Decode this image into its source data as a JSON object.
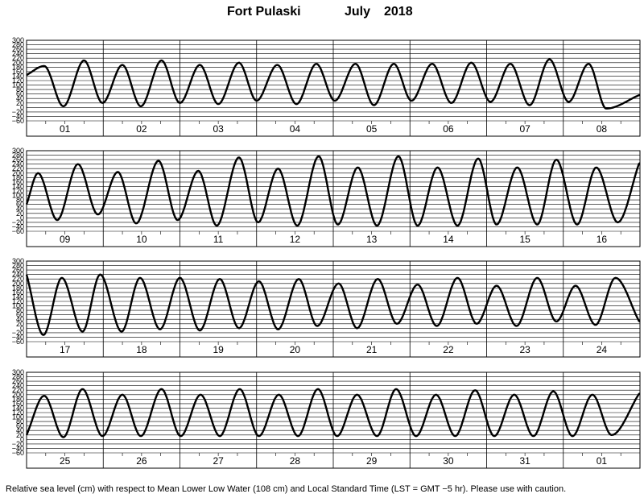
{
  "title": {
    "station": "Fort Pulaski",
    "month": "July",
    "year": "2018"
  },
  "caption": "Relative sea level (cm) with respect to Mean Lower Low Water (108 cm) and Local Standard Time (LST = GMT −5 hr). Please use with caution.",
  "chart_data": [
    {
      "type": "line",
      "xlabel": "",
      "ylabel": "",
      "ylim": [
        -60,
        300
      ],
      "yticks": [
        "300",
        "280",
        "260",
        "240",
        "220",
        "200",
        "180",
        "160",
        "140",
        "120",
        "100",
        "80",
        "60",
        "40",
        "20",
        "0",
        "−20",
        "−40",
        "−60"
      ],
      "xticks": [
        "01",
        "02",
        "03",
        "04",
        "05",
        "06",
        "07",
        "08"
      ],
      "series": [
        {
          "x": [
            0,
            0.23,
            0.48,
            0.75,
            0.99,
            1.25,
            1.49,
            1.76,
            2.0,
            2.26,
            2.5,
            2.77,
            3.0,
            3.27,
            3.52,
            3.78,
            4.02,
            4.29,
            4.53,
            4.79,
            5.02,
            5.29,
            5.54,
            5.8,
            6.05,
            6.31,
            6.56,
            6.82,
            7.07,
            7.33,
            7.56,
            7.99
          ],
          "y": [
            145,
            185,
            5,
            210,
            20,
            190,
            5,
            210,
            20,
            190,
            15,
            200,
            30,
            190,
            15,
            195,
            30,
            195,
            10,
            195,
            30,
            195,
            20,
            200,
            25,
            195,
            10,
            215,
            25,
            195,
            -5,
            55
          ]
        }
      ]
    },
    {
      "type": "line",
      "xlabel": "",
      "ylabel": "",
      "ylim": [
        -60,
        300
      ],
      "yticks": [
        "300",
        "280",
        "260",
        "240",
        "220",
        "200",
        "180",
        "160",
        "140",
        "120",
        "100",
        "80",
        "60",
        "40",
        "20",
        "0",
        "−20",
        "−40",
        "−60"
      ],
      "xticks": [
        "09",
        "10",
        "11",
        "12",
        "13",
        "14",
        "15",
        "16"
      ],
      "series": [
        {
          "x": [
            0,
            0.15,
            0.4,
            0.67,
            0.93,
            1.19,
            1.43,
            1.72,
            1.97,
            2.24,
            2.48,
            2.77,
            3.02,
            3.28,
            3.53,
            3.81,
            4.06,
            4.32,
            4.57,
            4.85,
            5.1,
            5.36,
            5.62,
            5.89,
            6.13,
            6.4,
            6.66,
            6.91,
            7.18,
            7.43,
            7.71,
            7.99
          ],
          "y": [
            60,
            200,
            -10,
            240,
            15,
            205,
            -25,
            255,
            -10,
            210,
            -35,
            270,
            -20,
            220,
            -35,
            275,
            -30,
            225,
            -35,
            275,
            -35,
            225,
            -35,
            265,
            -30,
            225,
            -30,
            260,
            -30,
            225,
            -20,
            245
          ]
        }
      ]
    },
    {
      "type": "line",
      "xlabel": "",
      "ylabel": "",
      "ylim": [
        -60,
        300
      ],
      "yticks": [
        "300",
        "280",
        "260",
        "240",
        "220",
        "200",
        "180",
        "160",
        "140",
        "120",
        "100",
        "80",
        "60",
        "40",
        "20",
        "0",
        "−20",
        "−40",
        "−60"
      ],
      "xticks": [
        "17",
        "18",
        "19",
        "20",
        "21",
        "22",
        "23",
        "24"
      ],
      "series": [
        {
          "x": [
            0,
            0.22,
            0.46,
            0.73,
            0.96,
            1.24,
            1.48,
            1.74,
            2.0,
            2.26,
            2.52,
            2.77,
            3.03,
            3.28,
            3.55,
            3.79,
            4.07,
            4.31,
            4.58,
            4.83,
            5.1,
            5.35,
            5.62,
            5.87,
            6.13,
            6.39,
            6.66,
            6.91,
            7.16,
            7.42,
            7.68,
            7.99
          ],
          "y": [
            240,
            -30,
            225,
            -15,
            240,
            -15,
            225,
            -5,
            225,
            -10,
            220,
            0,
            210,
            -5,
            220,
            10,
            200,
            0,
            220,
            20,
            195,
            10,
            225,
            20,
            190,
            10,
            225,
            30,
            190,
            15,
            225,
            30
          ]
        }
      ]
    },
    {
      "type": "line",
      "xlabel": "",
      "ylabel": "",
      "ylim": [
        -60,
        300
      ],
      "yticks": [
        "300",
        "280",
        "260",
        "240",
        "220",
        "200",
        "180",
        "160",
        "140",
        "120",
        "100",
        "80",
        "60",
        "40",
        "20",
        "0",
        "−20",
        "−40",
        "−60"
      ],
      "xticks": [
        "25",
        "26",
        "27",
        "28",
        "29",
        "30",
        "31",
        "01"
      ],
      "series": [
        {
          "x": [
            0,
            0.23,
            0.48,
            0.73,
            0.99,
            1.25,
            1.49,
            1.76,
            2.01,
            2.27,
            2.52,
            2.78,
            3.03,
            3.29,
            3.54,
            3.8,
            4.05,
            4.31,
            4.57,
            4.82,
            5.08,
            5.34,
            5.59,
            5.85,
            6.1,
            6.36,
            6.61,
            6.87,
            7.12,
            7.38,
            7.63,
            7.99
          ],
          "y": [
            20,
            195,
            10,
            225,
            15,
            200,
            15,
            225,
            15,
            200,
            15,
            225,
            15,
            200,
            15,
            225,
            15,
            200,
            15,
            225,
            15,
            200,
            15,
            220,
            15,
            200,
            15,
            215,
            15,
            200,
            20,
            205
          ]
        }
      ]
    }
  ]
}
